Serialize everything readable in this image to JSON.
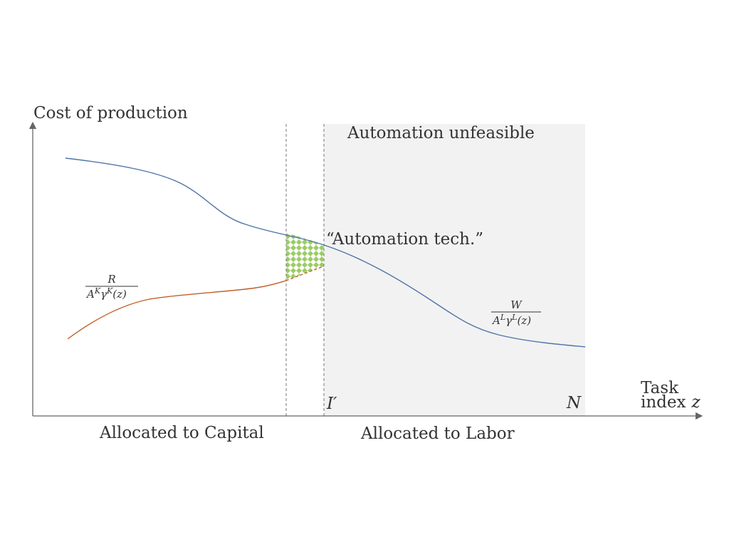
{
  "labels": {
    "y_axis": "Cost of production",
    "x_axis_line1": "Task",
    "x_axis_line2": "index",
    "x_axis_var": "z",
    "unfeasible_region": "Automation unfeasible",
    "automation_tech": "“Automation tech.”",
    "marker_i_prime": "I′",
    "marker_n": "N",
    "allocated_capital": "Allocated to Capital",
    "allocated_labor": "Allocated to Labor"
  },
  "capital_cost_label": {
    "numerator": "R",
    "denominator_a": "A",
    "denominator_a_sup": "K",
    "denominator_gamma": "γ",
    "denominator_gamma_sup": "K",
    "denominator_arg": "(z)"
  },
  "labor_cost_label": {
    "numerator": "W",
    "denominator_a": "A",
    "denominator_a_sup": "L",
    "denominator_gamma": "γ",
    "denominator_gamma_sup": "L",
    "denominator_arg": "(z)"
  },
  "colors": {
    "labor_curve": "#4f74a8",
    "capital_curve": "#c0602a",
    "shaded_region": "#f2f2f2",
    "hatch": "#9ccc65",
    "axis": "#666666",
    "dashed_line": "#777777"
  }
}
